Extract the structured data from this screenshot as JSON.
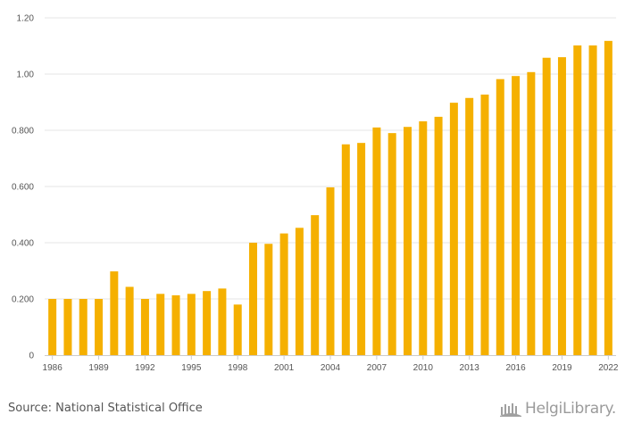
{
  "chart_data": {
    "type": "bar",
    "title": "",
    "xlabel": "",
    "ylabel": "",
    "ylim": [
      0,
      1.2
    ],
    "yticks": [
      {
        "value": 0,
        "label": "0"
      },
      {
        "value": 0.2,
        "label": "0.200"
      },
      {
        "value": 0.4,
        "label": "0.400"
      },
      {
        "value": 0.6,
        "label": "0.600"
      },
      {
        "value": 0.8,
        "label": "0.800"
      },
      {
        "value": 1.0,
        "label": "1.00"
      },
      {
        "value": 1.2,
        "label": "1.20"
      }
    ],
    "x_tick_labels": [
      "1986",
      "1989",
      "1992",
      "1995",
      "1998",
      "2001",
      "2004",
      "2007",
      "2010",
      "2013",
      "2016",
      "2019",
      "2022"
    ],
    "categories": [
      "1986",
      "1987",
      "1988",
      "1989",
      "1990",
      "1991",
      "1992",
      "1993",
      "1994",
      "1995",
      "1996",
      "1997",
      "1998",
      "1999",
      "2000",
      "2001",
      "2002",
      "2003",
      "2004",
      "2005",
      "2006",
      "2007",
      "2008",
      "2009",
      "2010",
      "2011",
      "2012",
      "2013",
      "2014",
      "2015",
      "2016",
      "2017",
      "2018",
      "2019",
      "2020",
      "2021",
      "2022"
    ],
    "values": [
      0.2,
      0.2,
      0.2,
      0.2,
      0.298,
      0.243,
      0.2,
      0.218,
      0.213,
      0.218,
      0.228,
      0.237,
      0.18,
      0.4,
      0.396,
      0.433,
      0.453,
      0.498,
      0.597,
      0.75,
      0.755,
      0.81,
      0.79,
      0.812,
      0.832,
      0.848,
      0.898,
      0.915,
      0.927,
      0.982,
      0.993,
      1.007,
      1.058,
      1.06,
      1.102,
      1.102,
      1.118
    ],
    "grid": true,
    "colors": {
      "bar": "#f5b000",
      "grid": "#e6e6e6",
      "axis": "#cccccc"
    }
  },
  "footer": {
    "source": "Source: National Statistical Office",
    "logo_text": "HelgiLibrary."
  }
}
